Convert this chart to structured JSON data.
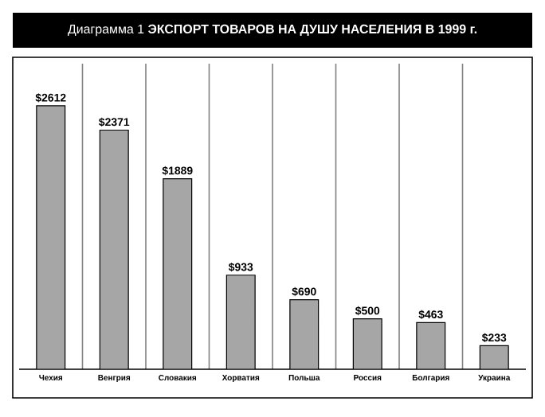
{
  "chart_data": {
    "type": "bar",
    "title": "Диаграмма 1  **ЭКСПОРТ ТОВАРОВ НА ДУШУ НАСЕЛЕНИЯ В 1999 г.**",
    "categories": [
      "Чехия",
      "Венгрия",
      "Словакия",
      "Хорватия",
      "Польша",
      "Россия",
      "Болгария",
      "Украина"
    ],
    "values": [
      2612,
      2371,
      1889,
      933,
      690,
      500,
      463,
      233
    ],
    "value_labels": [
      "$2612",
      "$2371",
      "$1889",
      "$933",
      "$690",
      "$500",
      "$463",
      "$233"
    ],
    "color": "#a6a6a6",
    "grid": "x",
    "tick_labels": "x"
  }
}
